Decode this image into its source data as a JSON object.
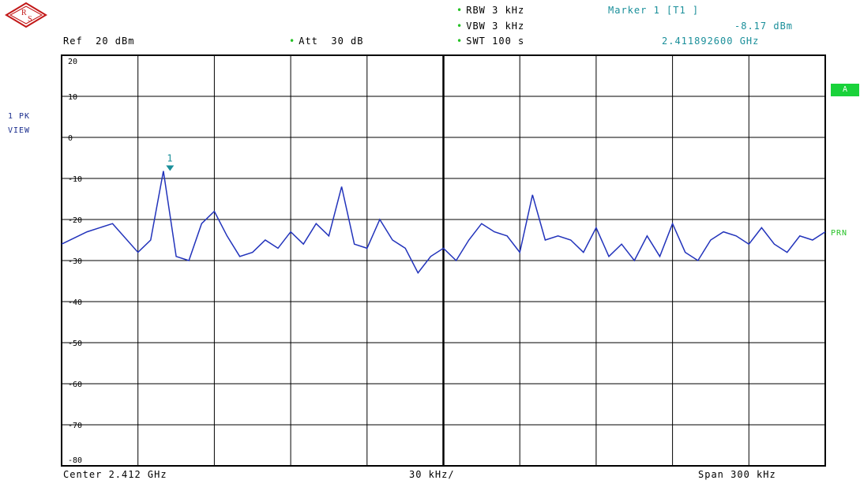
{
  "header": {
    "ref": "Ref  20 dBm",
    "att": "Att  30 dB",
    "rbw": "RBW 3 kHz",
    "vbw": "VBW 3 kHz",
    "swt": "SWT 100 s",
    "marker_title": "Marker 1 [T1 ]",
    "marker_level": "-8.17 dBm",
    "marker_freq": "2.411892600 GHz"
  },
  "left_panel": {
    "line1": "1 PK",
    "line2": "VIEW"
  },
  "right_panel": {
    "badge": "A",
    "trace_label": "PRN"
  },
  "footer": {
    "center": "Center 2.412 GHz",
    "per_div": "30 kHz/",
    "span": "Span 300 kHz"
  },
  "marker_label": "1",
  "colors": {
    "trace": "#2233bb",
    "grid": "#000000",
    "marker": "#1a8f9a",
    "status_green": "#19d23a"
  },
  "chart_data": {
    "type": "line",
    "title": "",
    "xlabel": "",
    "ylabel": "",
    "xlim": [
      2.41185,
      2.41215
    ],
    "ylim": [
      -80,
      20
    ],
    "yticks": [
      20,
      10,
      0,
      -10,
      -20,
      -30,
      -40,
      -50,
      -60,
      -70,
      -80
    ],
    "ytick_labels": [
      "20",
      "10",
      "0",
      "-10",
      "-20",
      "-30",
      "-40",
      "-50",
      "-60",
      "-70",
      "-80"
    ],
    "grid": true,
    "marker": {
      "x": 2.4118926,
      "y": -8.17,
      "label": "1"
    },
    "series": [
      {
        "x": [
          2.41185,
          2.41186,
          2.41187,
          2.41188,
          2.411885,
          2.41189,
          2.411895,
          2.4119,
          2.411905,
          2.41191,
          2.411915,
          2.41192,
          2.411925,
          2.41193,
          2.411935,
          2.41194,
          2.411945,
          2.41195,
          2.411955,
          2.41196,
          2.411965,
          2.41197,
          2.411975,
          2.41198,
          2.411985,
          2.41199,
          2.411995,
          2.412,
          2.412005,
          2.41201,
          2.412015,
          2.41202,
          2.412025,
          2.41203,
          2.412035,
          2.41204,
          2.412045,
          2.41205,
          2.412055,
          2.41206,
          2.412065,
          2.41207,
          2.412075,
          2.41208,
          2.412085,
          2.41209,
          2.412095,
          2.4121,
          2.412105,
          2.41211,
          2.412115,
          2.41212,
          2.412125,
          2.41213,
          2.412135,
          2.41214,
          2.412145,
          2.41215
        ],
        "y": [
          -26,
          -23,
          -21,
          -28,
          -25,
          -8.2,
          -29,
          -30,
          -21,
          -18,
          -24,
          -29,
          -28,
          -25,
          -27,
          -23,
          -26,
          -21,
          -24,
          -12,
          -26,
          -27,
          -20,
          -25,
          -27,
          -33,
          -29,
          -27,
          -30,
          -25,
          -21,
          -23,
          -24,
          -28,
          -14,
          -25,
          -24,
          -25,
          -28,
          -22,
          -29,
          -26,
          -30,
          -24,
          -29,
          -21,
          -28,
          -30,
          -25,
          -23,
          -24,
          -26,
          -22,
          -26,
          -28,
          -24,
          -25,
          -23
        ]
      }
    ]
  }
}
